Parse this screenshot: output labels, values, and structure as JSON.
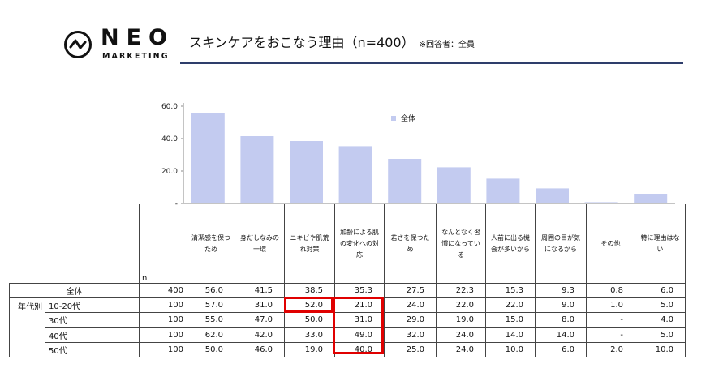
{
  "header": {
    "brand_top": "NEO",
    "brand_bottom": "MARKETING",
    "title": "スキンケアをおこなう理由（n=400）",
    "note": "※回答者：全員"
  },
  "colors": {
    "bar": "#c3cbf0",
    "rule": "#2e3d6b",
    "highlight": "#e00000"
  },
  "chart_data": {
    "type": "bar",
    "categories": [
      "清潔感を保つため",
      "身だしなみの一環",
      "ニキビや肌荒れ対策",
      "加齢による肌の変化への対応",
      "若さを保つため",
      "なんとなく習慣になっている",
      "人前に出る機会が多いから",
      "周囲の目が気になるから",
      "その他",
      "特に理由はない"
    ],
    "series": [
      {
        "name": "全体",
        "values": [
          56.0,
          41.5,
          38.5,
          35.3,
          27.5,
          22.3,
          15.3,
          9.3,
          0.8,
          6.0
        ]
      }
    ],
    "yticks": [
      "60.0",
      "40.0",
      "20.0",
      "-"
    ],
    "ylim": [
      0,
      60
    ],
    "legend": "top-right"
  },
  "table": {
    "header_lines": [
      [
        "清潔感を保つ",
        "ため"
      ],
      [
        "身だしなみの",
        "一環"
      ],
      [
        "ニキビや肌荒",
        "れ対策"
      ],
      [
        "加齢による肌",
        "の変化への対",
        "応"
      ],
      [
        "若さを保つた",
        "め"
      ],
      [
        "なんとなく習",
        "慣になってい",
        "る"
      ],
      [
        "人前に出る機",
        "会が多いから"
      ],
      [
        "周囲の目が気",
        "になるから"
      ],
      [
        "その他"
      ],
      [
        "特に理由はな",
        "い"
      ]
    ],
    "n_label": "n",
    "group_label": "年代別",
    "rows": [
      {
        "label": "全体",
        "n": "400",
        "values": [
          "56.0",
          "41.5",
          "38.5",
          "35.3",
          "27.5",
          "22.3",
          "15.3",
          "9.3",
          "0.8",
          "6.0"
        ]
      },
      {
        "label": "10-20代",
        "n": "100",
        "values": [
          "57.0",
          "31.0",
          "52.0",
          "21.0",
          "24.0",
          "22.0",
          "22.0",
          "9.0",
          "1.0",
          "5.0"
        ]
      },
      {
        "label": "30代",
        "n": "100",
        "values": [
          "55.0",
          "47.0",
          "50.0",
          "31.0",
          "29.0",
          "19.0",
          "15.0",
          "8.0",
          "-",
          "4.0"
        ]
      },
      {
        "label": "40代",
        "n": "100",
        "values": [
          "62.0",
          "42.0",
          "33.0",
          "49.0",
          "32.0",
          "24.0",
          "14.0",
          "14.0",
          "-",
          "5.0"
        ]
      },
      {
        "label": "50代",
        "n": "100",
        "values": [
          "50.0",
          "46.0",
          "19.0",
          "40.0",
          "25.0",
          "24.0",
          "10.0",
          "6.0",
          "2.0",
          "10.0"
        ]
      }
    ]
  }
}
